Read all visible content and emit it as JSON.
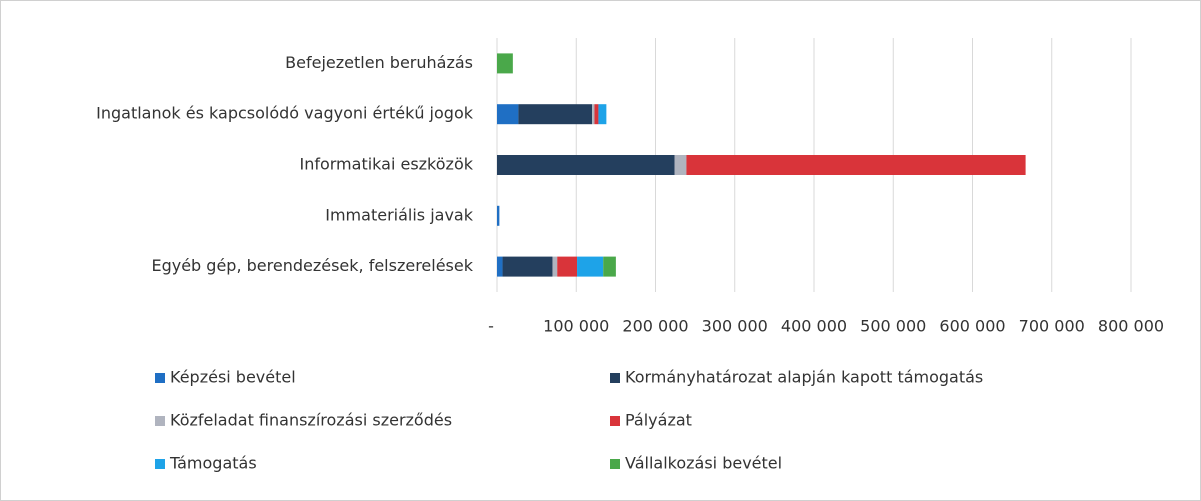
{
  "chart_data": {
    "type": "stacked_barh",
    "categories": [
      "Befejezetlen beruházás",
      "Ingatlanok és kapcsolódó vagyoni értékű jogok",
      "Informatikai eszközök",
      "Immateriális javak",
      "Egyéb gép, berendezések, felszerelések"
    ],
    "series": [
      {
        "name": "Képzési bevétel",
        "color": "#1f6fc4",
        "values": [
          0,
          27000,
          0,
          3000,
          7000
        ]
      },
      {
        "name": "Kormányhatározat alapján kapott támogatás",
        "color": "#243f5e",
        "values": [
          0,
          93000,
          224000,
          0,
          63000
        ]
      },
      {
        "name": "Közfeladat finanszírozási szerződés",
        "color": "#b0b4bf",
        "values": [
          0,
          3000,
          15000,
          0,
          6000
        ]
      },
      {
        "name": "Pályázat",
        "color": "#d9343a",
        "values": [
          0,
          5000,
          428000,
          0,
          25000
        ]
      },
      {
        "name": "Támogatás",
        "color": "#1ea3e8",
        "values": [
          0,
          10000,
          0,
          0,
          33000
        ]
      },
      {
        "name": "Vállalkozási bevétel",
        "color": "#4aa84a",
        "values": [
          20000,
          0,
          0,
          0,
          16000
        ]
      }
    ],
    "xlim": [
      0,
      800000
    ],
    "xticks": [
      {
        "value": 0,
        "label": "-"
      },
      {
        "value": 100000,
        "label": "100 000"
      },
      {
        "value": 200000,
        "label": "200 000"
      },
      {
        "value": 300000,
        "label": "300 000"
      },
      {
        "value": 400000,
        "label": "400 000"
      },
      {
        "value": 500000,
        "label": "500 000"
      },
      {
        "value": 600000,
        "label": "600 000"
      },
      {
        "value": 700000,
        "label": "700 000"
      },
      {
        "value": 800000,
        "label": "800 000"
      }
    ],
    "grid": true
  }
}
